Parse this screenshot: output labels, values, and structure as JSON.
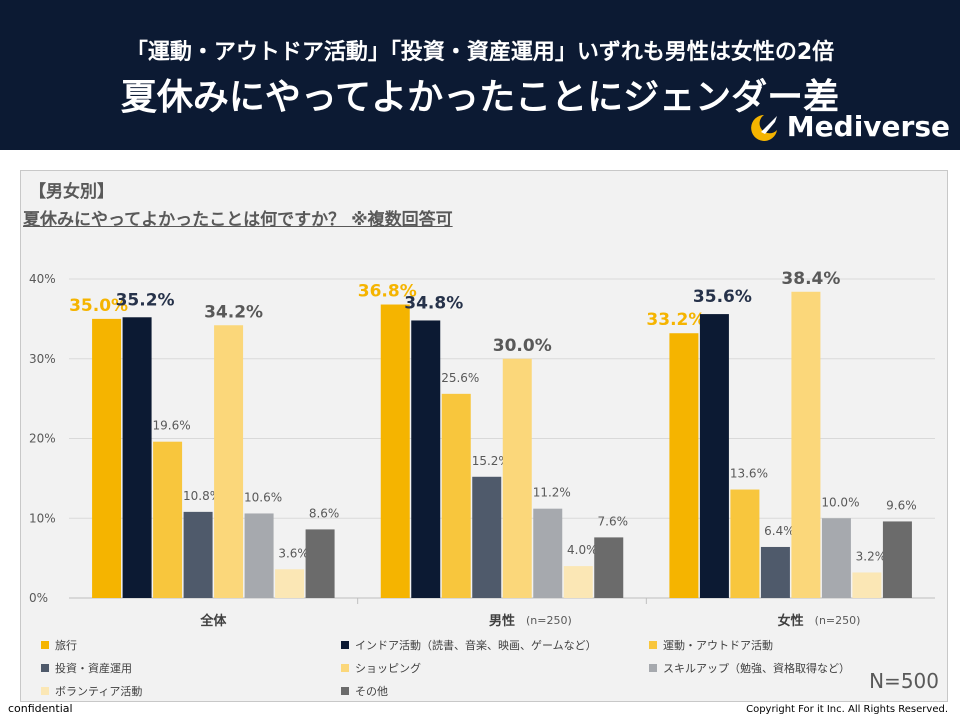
{
  "header": {
    "subtitle": "「運動・アウトドア活動」「投資・資産運用」いずれも男性は女性の2倍",
    "title": "夏休みにやってよかったことにジェンダー差",
    "logo_text": "Mediverse"
  },
  "panel": {
    "section_tag": "【男女別】",
    "question": "夏休みにやってよかったことは何ですか？ ※複数回答可",
    "n_label": "N=500"
  },
  "footer": {
    "left": "confidential",
    "right": "Copyright For it Inc. All Rights Reserved."
  },
  "chart_data": {
    "type": "bar",
    "ylim": [
      0,
      40
    ],
    "yticks": [
      0,
      10,
      20,
      30,
      40
    ],
    "ytick_labels": [
      "0%",
      "10%",
      "20%",
      "30%",
      "40%"
    ],
    "categories": [
      "全体",
      "男性",
      "女性"
    ],
    "category_notes": [
      "",
      "(n=250)",
      "(n=250)"
    ],
    "series": [
      {
        "name": "旅行",
        "color": "#f5b400",
        "values": [
          35.0,
          36.8,
          33.2
        ],
        "label_style": "big-yellow"
      },
      {
        "name": "インドア活動（読書、音楽、映画、ゲームなど）",
        "color": "#0c1a33",
        "values": [
          35.2,
          34.8,
          35.6
        ],
        "label_style": "big-dark"
      },
      {
        "name": "運動・アウトドア活動",
        "color": "#f8c63d",
        "values": [
          19.6,
          25.6,
          13.6
        ],
        "label_style": "small"
      },
      {
        "name": "投資・資産運用",
        "color": "#4f5a6b",
        "values": [
          10.8,
          15.2,
          6.4
        ],
        "label_style": "small"
      },
      {
        "name": "ショッピング",
        "color": "#fbd77a",
        "values": [
          34.2,
          30.0,
          38.4
        ],
        "label_style": "big-gray"
      },
      {
        "name": "スキルアップ（勉強、資格取得など）",
        "color": "#a6a9ae",
        "values": [
          10.6,
          11.2,
          10.0
        ],
        "label_style": "small"
      },
      {
        "name": "ボランティア活動",
        "color": "#fbe7b5",
        "values": [
          3.6,
          4.0,
          3.2
        ],
        "label_style": "small"
      },
      {
        "name": "その他",
        "color": "#6b6b6b",
        "values": [
          8.6,
          7.6,
          9.6
        ],
        "label_style": "small"
      }
    ],
    "value_labels": [
      [
        "35.0%",
        "36.8%",
        "33.2%"
      ],
      [
        "35.2%",
        "34.8%",
        "35.6%"
      ],
      [
        "19.6%",
        "25.6%",
        "13.6%"
      ],
      [
        "10.8%",
        "15.2%",
        "6.4%"
      ],
      [
        "34.2%",
        "30.0%",
        "38.4%"
      ],
      [
        "10.6%",
        "11.2%",
        "10.0%"
      ],
      [
        "3.6%",
        "4.0%",
        "3.2%"
      ],
      [
        "8.6%",
        "7.6%",
        "9.6%"
      ]
    ],
    "legend_position": "bottom"
  }
}
